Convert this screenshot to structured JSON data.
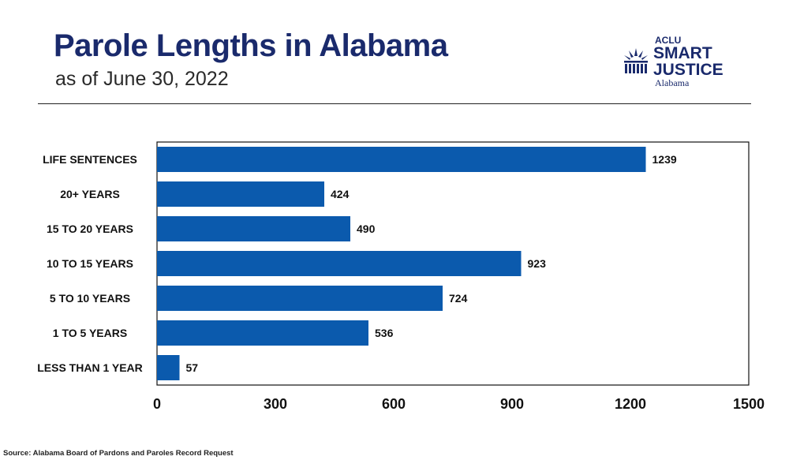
{
  "header": {
    "title": "Parole Lengths in Alabama",
    "subtitle": "as of June 30, 2022"
  },
  "logo": {
    "top_word": "ACLU",
    "word_1": "SMART",
    "word_2": "JUSTICE",
    "state": "Alabama",
    "icon": "smart-justice-emblem-icon"
  },
  "colors": {
    "bar": "#0b5aad",
    "title": "#1a2a6c",
    "axis": "#111111"
  },
  "chart_data": {
    "type": "bar",
    "orientation": "horizontal",
    "title": "Parole Lengths in Alabama",
    "subtitle": "as of June 30, 2022",
    "categories": [
      "LIFE SENTENCES",
      "20+ YEARS",
      "15 TO 20 YEARS",
      "10 TO 15 YEARS",
      "5 TO 10 YEARS",
      "1 TO 5 YEARS",
      "LESS THAN 1 YEAR"
    ],
    "values": [
      1239,
      424,
      490,
      923,
      724,
      536,
      57
    ],
    "value_labels": [
      "1239",
      "424",
      "490",
      "923",
      "724",
      "536",
      "57"
    ],
    "xlim": [
      0,
      1500
    ],
    "xticks": [
      0,
      300,
      600,
      900,
      1200,
      1500
    ],
    "xtick_labels": [
      "0",
      "300",
      "600",
      "900",
      "1200",
      "1500"
    ],
    "xlabel": "",
    "ylabel": "",
    "grid": false,
    "legend": "none"
  },
  "footer": {
    "source": "Source: Alabama Board of Pardons and Paroles Record Request"
  }
}
